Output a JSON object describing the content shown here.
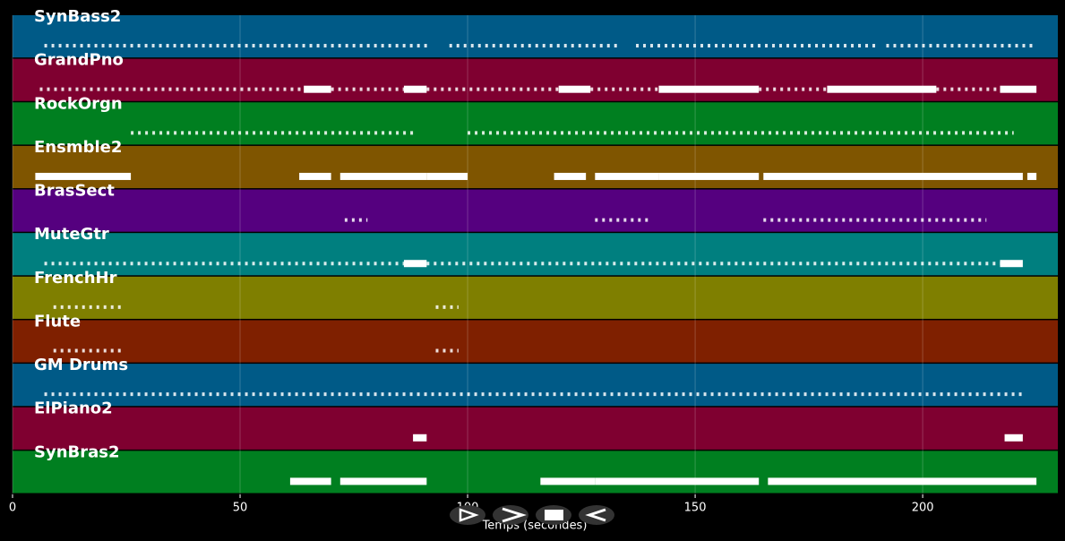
{
  "chart_data": {
    "type": "pianoroll",
    "xlabel": "Temps (secondes)",
    "xlim": [
      0,
      229.7
    ],
    "xticks": [
      0,
      50,
      100,
      150,
      200
    ],
    "grid": true,
    "tracks": [
      {
        "name": "SynBass2",
        "color": "#005a87",
        "dotted": [
          [
            7,
            70
          ],
          [
            70,
            92
          ],
          [
            96,
            133
          ],
          [
            137,
            190
          ],
          [
            192,
            225
          ]
        ],
        "solid": []
      },
      {
        "name": "GrandPno",
        "color": "#7f0030",
        "dotted": [
          [
            6,
            64
          ],
          [
            70,
            86
          ],
          [
            91,
            120
          ],
          [
            127,
            142
          ],
          [
            164,
            179
          ],
          [
            203,
            217
          ]
        ],
        "solid": [
          [
            64,
            70
          ],
          [
            86,
            91
          ],
          [
            120,
            127
          ],
          [
            142,
            164
          ],
          [
            179,
            203
          ],
          [
            217,
            225
          ]
        ]
      },
      {
        "name": "RockOrgn",
        "color": "#007f20",
        "dotted": [
          [
            26,
            88
          ],
          [
            100,
            220
          ]
        ],
        "solid": []
      },
      {
        "name": "Ensmble2",
        "color": "#7f5500",
        "dotted": [],
        "solid": [
          [
            5,
            26
          ],
          [
            63,
            70
          ],
          [
            72,
            91
          ],
          [
            91,
            100
          ],
          [
            119,
            126
          ],
          [
            128,
            142
          ],
          [
            142,
            164
          ],
          [
            165,
            222
          ],
          [
            223,
            225
          ]
        ]
      },
      {
        "name": "BrasSect",
        "color": "#55007f",
        "dotted": [
          [
            73,
            78
          ],
          [
            128,
            140
          ],
          [
            165,
            214
          ]
        ],
        "solid": []
      },
      {
        "name": "MuteGtr",
        "color": "#007f7f",
        "dotted": [
          [
            7,
            86
          ],
          [
            91,
            217
          ]
        ],
        "solid": [
          [
            86,
            91
          ],
          [
            217,
            222
          ]
        ]
      },
      {
        "name": "FrenchHr",
        "color": "#7f7f00",
        "dotted": [
          [
            9,
            24
          ],
          [
            93,
            98
          ]
        ],
        "solid": []
      },
      {
        "name": "Flute",
        "color": "#7f2000",
        "dotted": [
          [
            9,
            24
          ],
          [
            93,
            98
          ]
        ],
        "solid": []
      },
      {
        "name": "GM Drums",
        "color": "#005a87",
        "dotted": [
          [
            7,
            222
          ]
        ],
        "solid": []
      },
      {
        "name": "ElPiano2",
        "color": "#7f0030",
        "dotted": [],
        "solid": [
          [
            88,
            91
          ],
          [
            218,
            222
          ]
        ]
      },
      {
        "name": "SynBras2",
        "color": "#007f20",
        "dotted": [],
        "solid": [
          [
            61,
            70
          ],
          [
            72,
            91
          ],
          [
            116,
            128
          ],
          [
            128,
            164
          ],
          [
            166,
            225
          ]
        ]
      }
    ]
  }
}
